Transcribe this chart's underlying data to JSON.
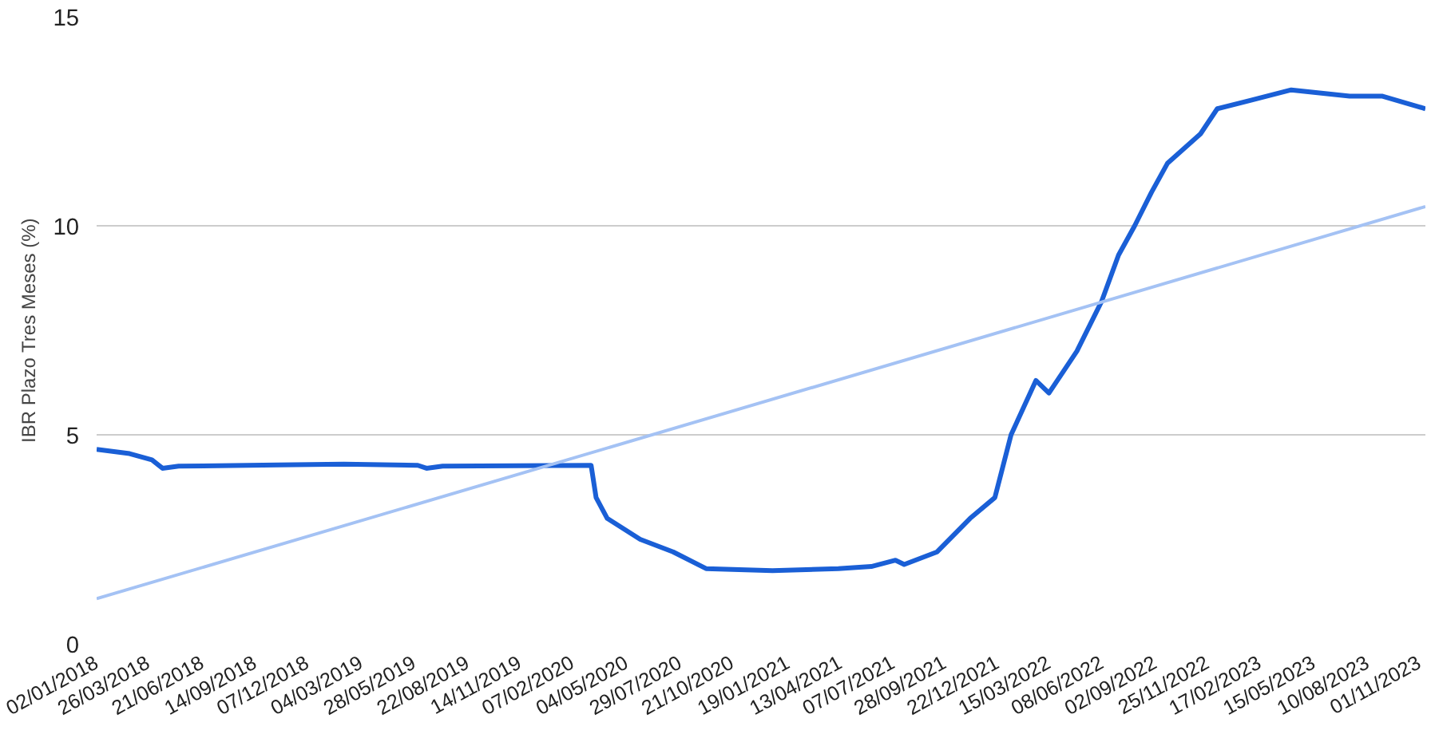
{
  "chart_data": {
    "type": "line",
    "ylabel": "IBR Plazo Tres Meses (%)",
    "x": [
      "2018-01-02",
      "2018-02-24",
      "2018-04-01",
      "2018-04-18",
      "2018-05-14",
      "2018-10-21",
      "2019-02-04",
      "2019-06-03",
      "2019-06-17",
      "2019-07-13",
      "2020-03-08",
      "2020-03-16",
      "2020-04-03",
      "2020-05-26",
      "2020-07-18",
      "2020-09-09",
      "2020-12-25",
      "2021-04-10",
      "2021-06-02",
      "2021-07-11",
      "2021-07-25",
      "2021-09-16",
      "2021-11-08",
      "2021-12-18",
      "2022-01-13",
      "2022-02-22",
      "2022-03-15",
      "2022-04-29",
      "2022-06-08",
      "2022-07-05",
      "2022-07-31",
      "2022-08-27",
      "2022-09-22",
      "2022-11-14",
      "2022-12-11",
      "2023-02-02",
      "2023-04-09",
      "2023-07-12",
      "2023-09-03",
      "2023-11-11"
    ],
    "series": [
      {
        "color": "#1a5fd6",
        "values": [
          4.65,
          4.55,
          4.4,
          4.2,
          4.25,
          4.28,
          4.3,
          4.27,
          4.2,
          4.25,
          4.27,
          3.5,
          3.0,
          2.5,
          2.2,
          1.8,
          1.75,
          1.8,
          1.85,
          2.0,
          1.9,
          2.2,
          3.0,
          3.5,
          5.0,
          6.3,
          6.0,
          7.0,
          8.2,
          9.3,
          10.0,
          10.8,
          11.5,
          12.2,
          12.8,
          13.0,
          13.25,
          13.1,
          13.1,
          12.8
        ]
      },
      {
        "color": "#a4c2f4",
        "x": [
          "2018-01-02",
          "2023-11-11"
        ],
        "values": [
          1.08,
          10.46
        ]
      }
    ],
    "xlim": [
      "2018-01-02",
      "2023-11-11"
    ],
    "ylim": [
      0,
      15
    ],
    "yticks": [
      0,
      5,
      10,
      15
    ],
    "xticks": [
      {
        "value": "2018-01-02",
        "label": "02/01/2018"
      },
      {
        "value": "2018-03-26",
        "label": "26/03/2018"
      },
      {
        "value": "2018-06-21",
        "label": "21/06/2018"
      },
      {
        "value": "2018-09-14",
        "label": "14/09/2018"
      },
      {
        "value": "2018-12-07",
        "label": "07/12/2018"
      },
      {
        "value": "2019-03-04",
        "label": "04/03/2019"
      },
      {
        "value": "2019-05-28",
        "label": "28/05/2019"
      },
      {
        "value": "2019-08-22",
        "label": "22/08/2019"
      },
      {
        "value": "2019-11-14",
        "label": "14/11/2019"
      },
      {
        "value": "2020-02-07",
        "label": "07/02/2020"
      },
      {
        "value": "2020-05-04",
        "label": "04/05/2020"
      },
      {
        "value": "2020-07-29",
        "label": "29/07/2020"
      },
      {
        "value": "2020-10-21",
        "label": "21/10/2020"
      },
      {
        "value": "2021-01-19",
        "label": "19/01/2021"
      },
      {
        "value": "2021-04-13",
        "label": "13/04/2021"
      },
      {
        "value": "2021-07-07",
        "label": "07/07/2021"
      },
      {
        "value": "2021-09-28",
        "label": "28/09/2021"
      },
      {
        "value": "2021-12-22",
        "label": "22/12/2021"
      },
      {
        "value": "2022-03-15",
        "label": "15/03/2022"
      },
      {
        "value": "2022-06-08",
        "label": "08/06/2022"
      },
      {
        "value": "2022-09-02",
        "label": "02/09/2022"
      },
      {
        "value": "2022-11-25",
        "label": "25/11/2022"
      },
      {
        "value": "2023-02-17",
        "label": "17/02/2023"
      },
      {
        "value": "2023-05-15",
        "label": "15/05/2023"
      },
      {
        "value": "2023-08-10",
        "label": "10/08/2023"
      },
      {
        "value": "2023-11-01",
        "label": "01/11/2023"
      }
    ],
    "grid": "y"
  }
}
